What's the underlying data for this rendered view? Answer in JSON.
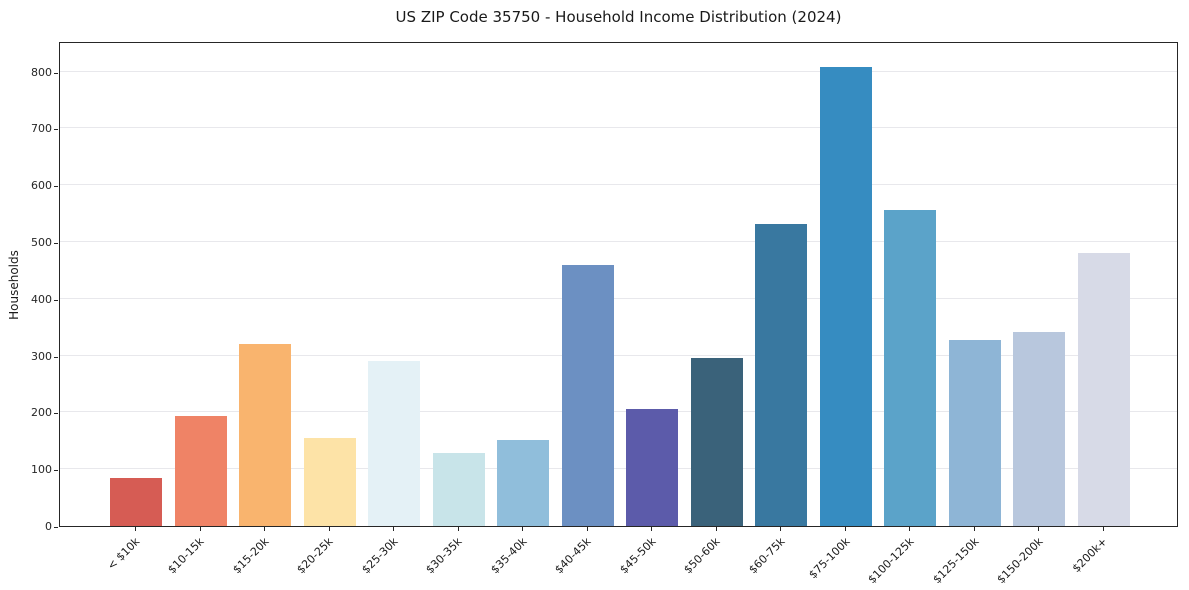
{
  "chart_data": {
    "type": "bar",
    "title": "US ZIP Code 35750 - Household Income Distribution (2024)",
    "xlabel": "",
    "ylabel": "Households",
    "categories": [
      "< $10k",
      "$10-15k",
      "$15-20k",
      "$20-25k",
      "$25-30k",
      "$30-35k",
      "$35-40k",
      "$40-45k",
      "$45-50k",
      "$50-60k",
      "$60-75k",
      "$75-100k",
      "$100-125k",
      "$125-150k",
      "$150-200k",
      "$200k+"
    ],
    "values": [
      85,
      194,
      320,
      155,
      290,
      129,
      152,
      460,
      206,
      296,
      532,
      808,
      557,
      328,
      341,
      480
    ],
    "bar_colors": [
      "#d65c54",
      "#ef8366",
      "#f9b46e",
      "#fde3a7",
      "#e4f1f6",
      "#c8e4e9",
      "#90bedb",
      "#6c90c2",
      "#5c5baa",
      "#3a627a",
      "#3978a0",
      "#368cc1",
      "#5ba3c9",
      "#8eb5d6",
      "#b8c7dd",
      "#d7dae7"
    ],
    "yticks": [
      0,
      100,
      200,
      300,
      400,
      500,
      600,
      700,
      800
    ],
    "ylim": [
      0,
      854
    ],
    "grid": "horizontal-only",
    "legend": "none",
    "xtick_rotation_deg": 45,
    "colors": {
      "background": "#ffffff",
      "spine": "#262626",
      "gridline": "#e8e8ec",
      "text": "#1a1a1a"
    }
  }
}
